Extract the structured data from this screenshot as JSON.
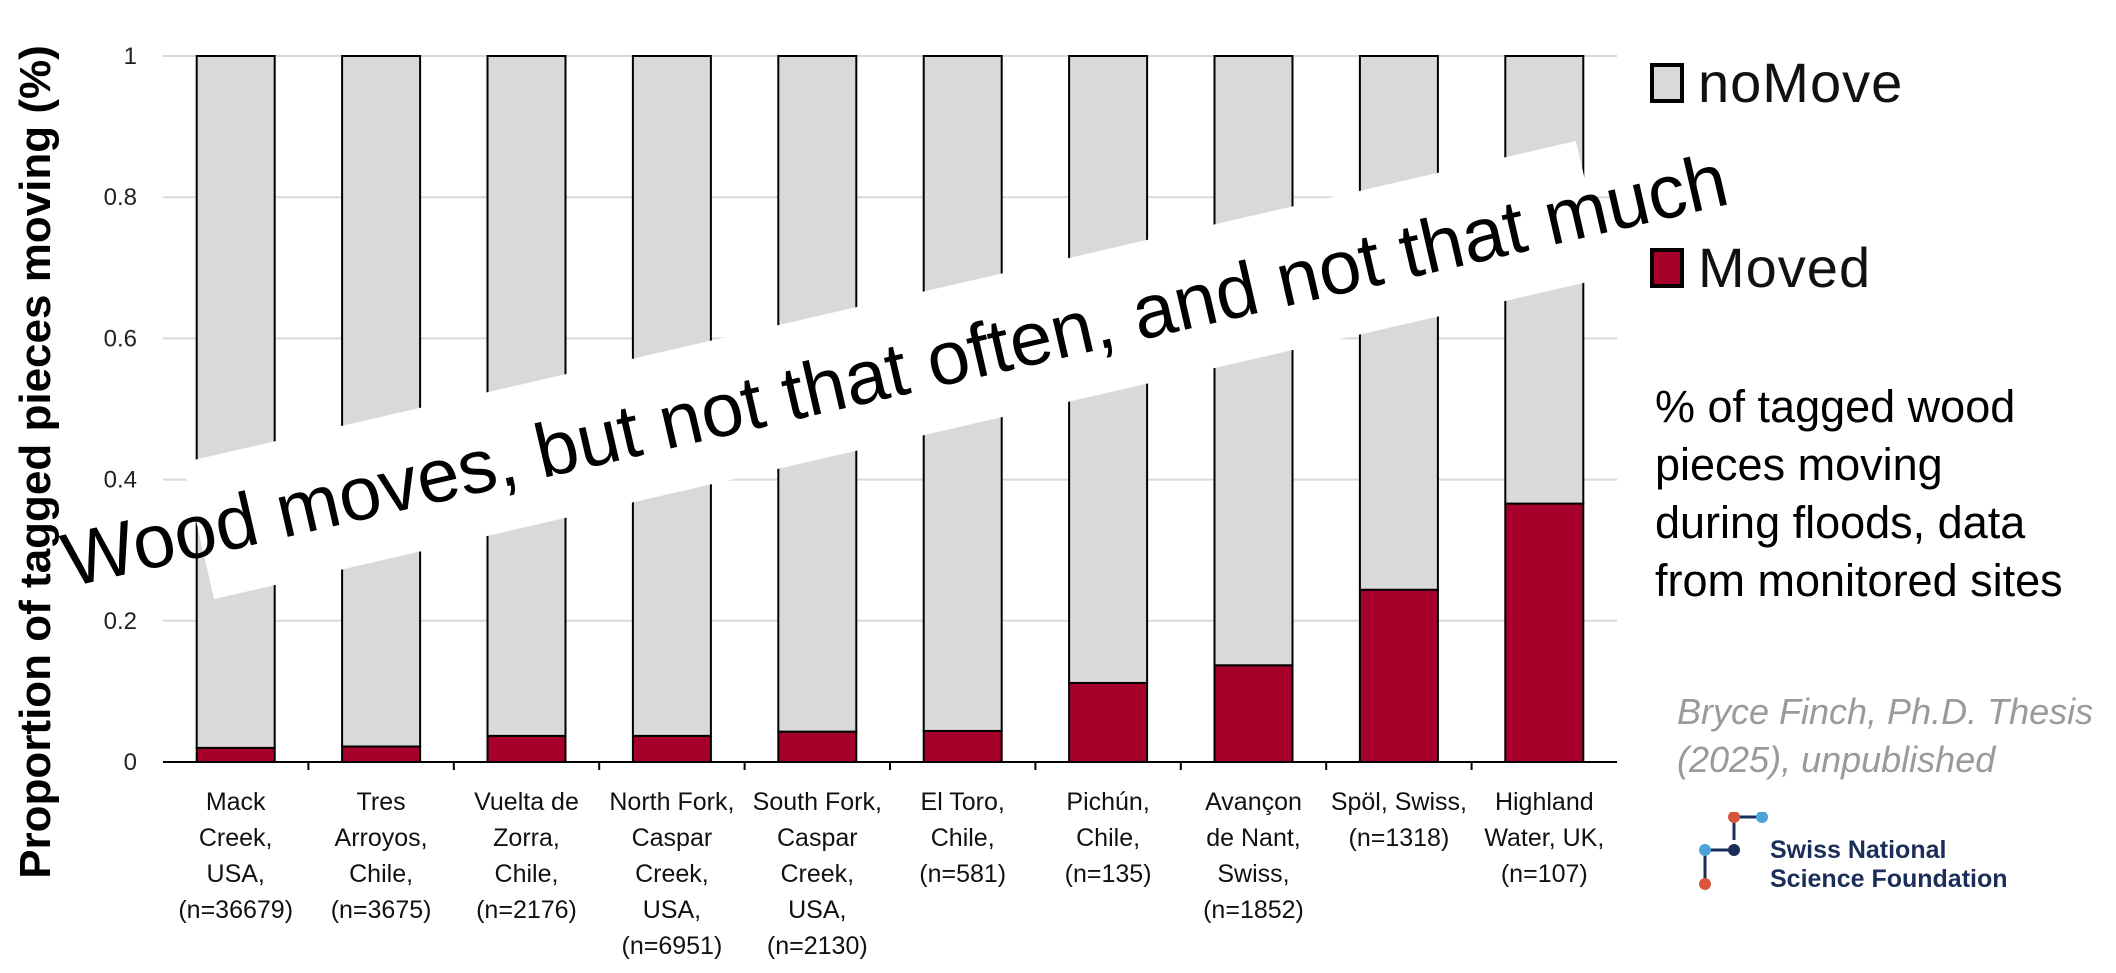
{
  "chart_data": {
    "type": "bar",
    "stacked": true,
    "ylabel": "Proportion of tagged pieces moving (%)",
    "ylim": [
      0,
      1
    ],
    "yticks": [
      "0",
      "0.2",
      "0.4",
      "0.6",
      "0.8",
      "1"
    ],
    "grid": true,
    "categories": [
      [
        "Mack",
        "Creek,",
        "USA,",
        "(n=36679)"
      ],
      [
        "Tres",
        "Arroyos,",
        "Chile,",
        "(n=3675)"
      ],
      [
        "Vuelta de",
        "Zorra,",
        "Chile,",
        "(n=2176)"
      ],
      [
        "North Fork,",
        "Caspar",
        "Creek,",
        "USA,",
        "(n=6951)"
      ],
      [
        "South Fork,",
        "Caspar",
        "Creek,",
        "USA,",
        "(n=2130)"
      ],
      [
        "El Toro,",
        "Chile,",
        "(n=581)"
      ],
      [
        "Pichún,",
        "Chile,",
        "(n=135)"
      ],
      [
        "Avançon",
        "de Nant,",
        "Swiss,",
        "(n=1852)"
      ],
      [
        "Spöl, Swiss,",
        "(n=1318)"
      ],
      [
        "Highland",
        "Water, UK,",
        "(n=107)"
      ]
    ],
    "series": [
      {
        "name": "Moved",
        "color": "#a6002b",
        "values": [
          0.02,
          0.022,
          0.037,
          0.037,
          0.043,
          0.044,
          0.112,
          0.137,
          0.244,
          0.366
        ]
      },
      {
        "name": "noMove",
        "color": "#d9d9d9",
        "values": [
          0.98,
          0.978,
          0.963,
          0.963,
          0.957,
          0.956,
          0.888,
          0.863,
          0.756,
          0.634
        ]
      }
    ],
    "legend_position": "right",
    "annotation": "Wood moves, but not that often, and not that much"
  },
  "legend": {
    "items": [
      {
        "label": "noMove",
        "color": "#d9d9d9"
      },
      {
        "label": "Moved",
        "color": "#a6002b"
      }
    ]
  },
  "side_note": {
    "lines": [
      "% of tagged wood",
      "pieces moving",
      "during floods, data",
      "from monitored sites"
    ]
  },
  "credit": {
    "lines": [
      "Bryce Finch, Ph.D. Thesis",
      "(2025), unpublished"
    ]
  },
  "logo": {
    "lines": [
      "Swiss National",
      "Science Foundation"
    ]
  }
}
